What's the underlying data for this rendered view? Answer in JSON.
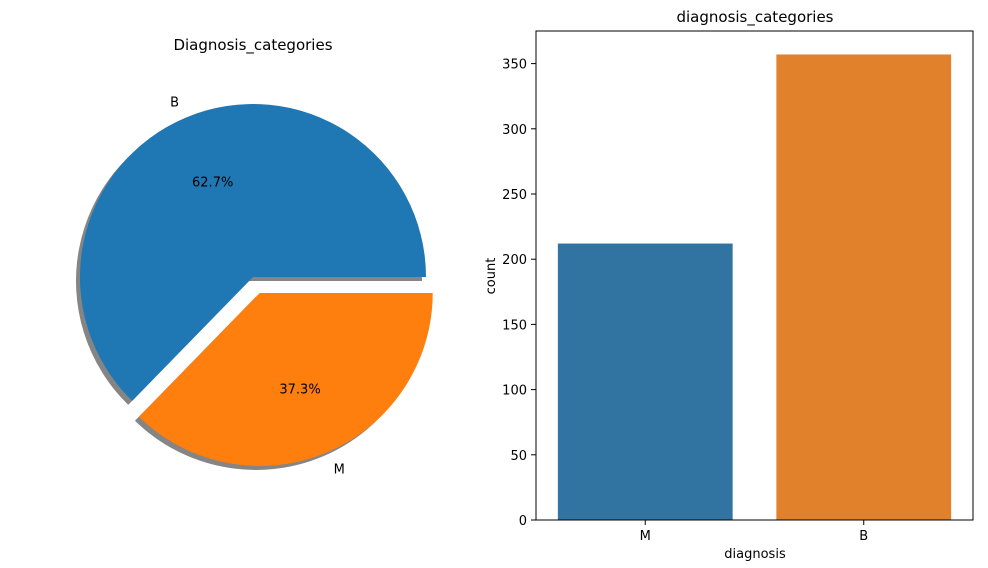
{
  "chart_data": [
    {
      "type": "pie",
      "title": "Diagnosis_categories",
      "labels": [
        "B",
        "M"
      ],
      "values": [
        62.7,
        37.3
      ],
      "value_labels": [
        "62.7%",
        "37.3%"
      ],
      "explode": [
        0,
        0.1
      ],
      "shadow": true,
      "colors": [
        "#1f77b4",
        "#ff7f0e"
      ]
    },
    {
      "type": "bar",
      "title": "diagnosis_categories",
      "categories": [
        "M",
        "B"
      ],
      "values": [
        212,
        357
      ],
      "xlabel": "diagnosis",
      "ylabel": "count",
      "ylim": [
        0,
        375
      ],
      "yticks": [
        0,
        50,
        100,
        150,
        200,
        250,
        300,
        350
      ],
      "colors": [
        "#3274a1",
        "#e1812c"
      ],
      "grid": false
    }
  ]
}
